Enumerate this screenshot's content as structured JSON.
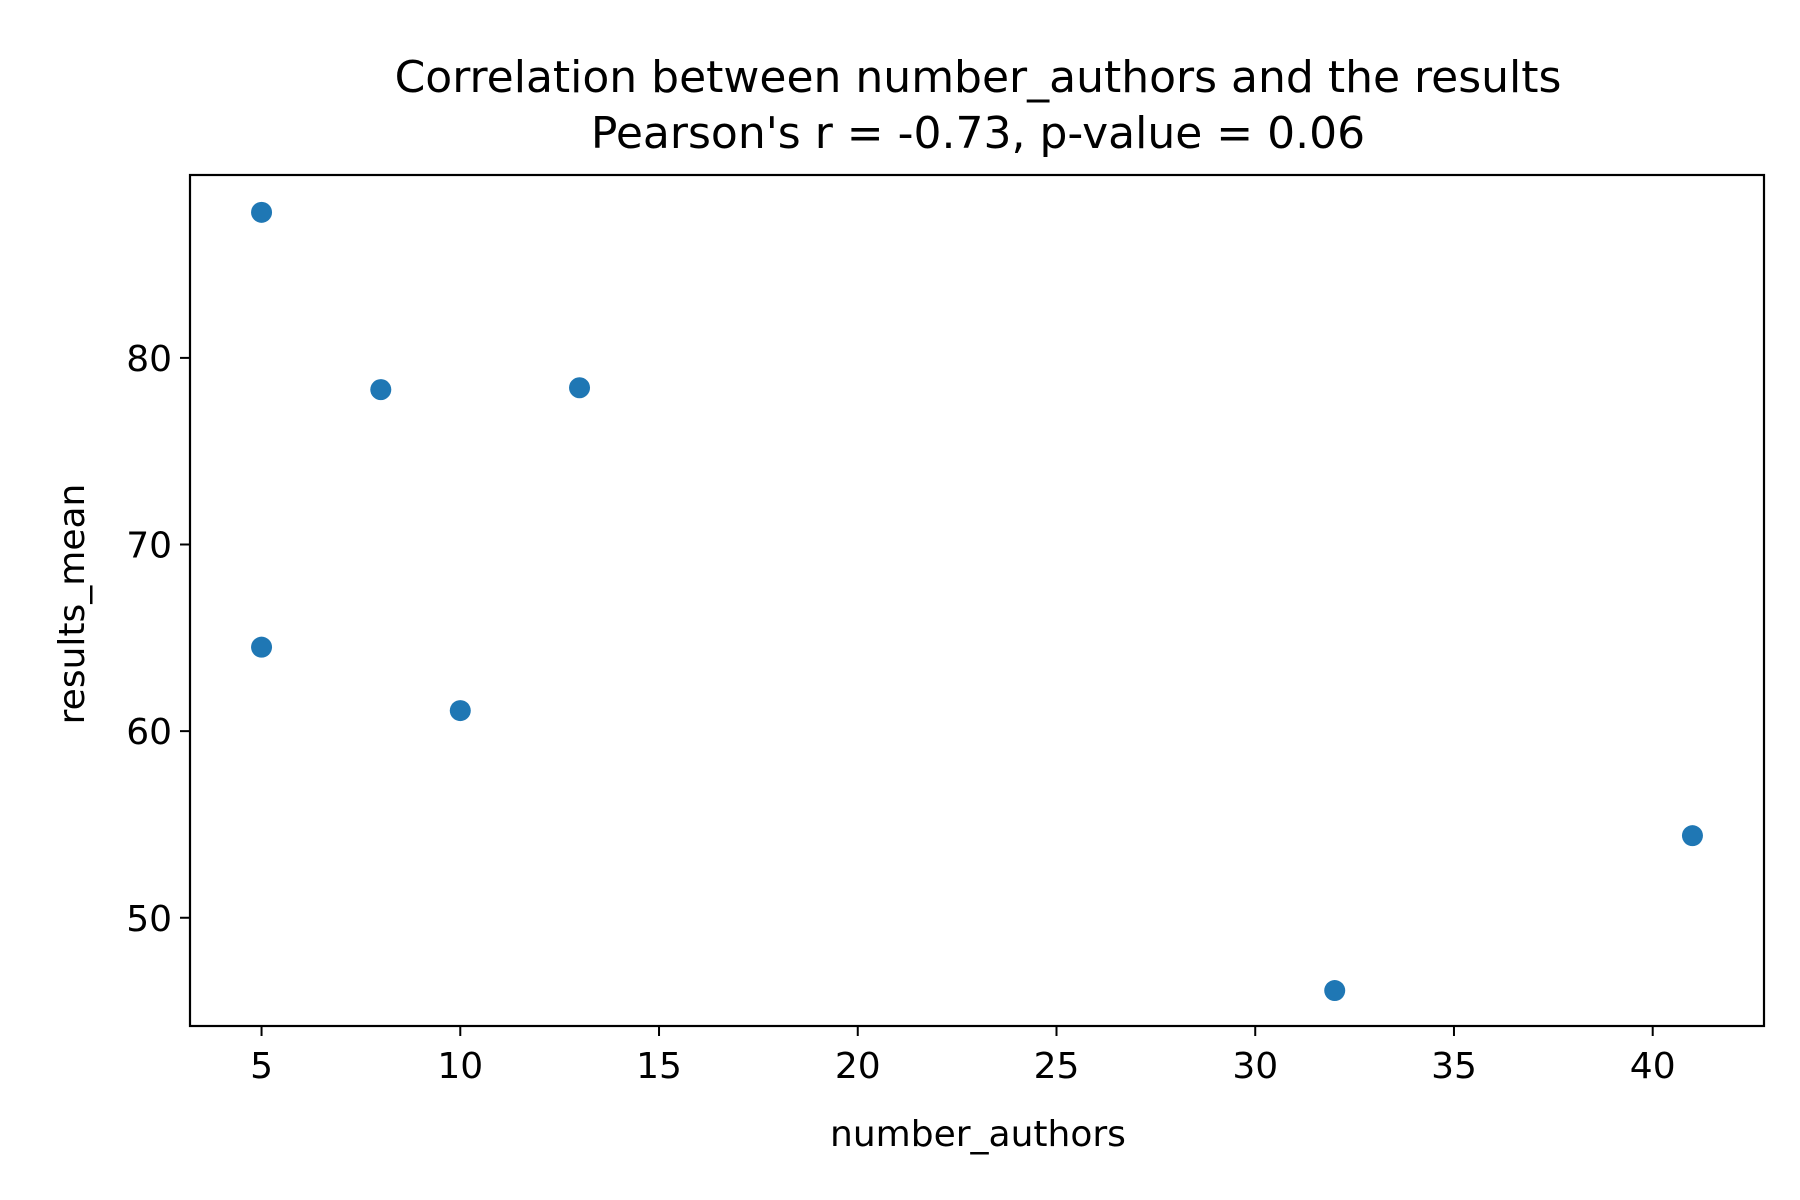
{
  "chart_data": {
    "type": "scatter",
    "title": "Correlation between number_authors and the results",
    "subtitle": "Pearson's r = -0.73, p-value = 0.06",
    "xlabel": "number_authors",
    "ylabel": "results_mean",
    "xlim": [
      3.2,
      42.8
    ],
    "ylim": [
      44.2,
      89.8
    ],
    "xticks": [
      5,
      10,
      15,
      20,
      25,
      30,
      35,
      40
    ],
    "yticks": [
      50,
      60,
      70,
      80
    ],
    "grid": false,
    "point_color": "#1f77b4",
    "points": [
      {
        "x": 5,
        "y": 87.8
      },
      {
        "x": 8,
        "y": 78.3
      },
      {
        "x": 13,
        "y": 78.4
      },
      {
        "x": 5,
        "y": 64.5
      },
      {
        "x": 10,
        "y": 61.1
      },
      {
        "x": 32,
        "y": 46.1
      },
      {
        "x": 41,
        "y": 54.4
      }
    ]
  }
}
